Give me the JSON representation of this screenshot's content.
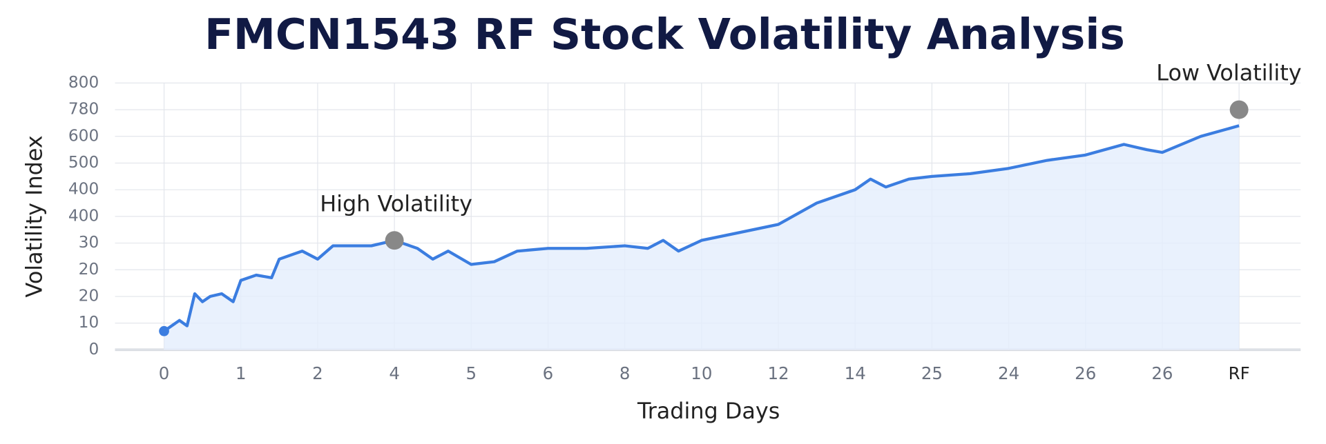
{
  "chart_data": {
    "type": "line",
    "title": "FMCN1543 RF Stock Volatility Analysis",
    "xlabel": "Trading Days",
    "ylabel": "Volatility Index",
    "categories": [
      "0",
      "1",
      "2",
      "4",
      "5",
      "6",
      "8",
      "10",
      "12",
      "14",
      "25",
      "24",
      "26",
      "26",
      "RF"
    ],
    "ylim": [
      0,
      10
    ],
    "yticks": [
      {
        "value": 0,
        "label": "0"
      },
      {
        "value": 1,
        "label": "10"
      },
      {
        "value": 2,
        "label": "20"
      },
      {
        "value": 3,
        "label": "20"
      },
      {
        "value": 4,
        "label": "30"
      },
      {
        "value": 5,
        "label": "400"
      },
      {
        "value": 6,
        "label": "400"
      },
      {
        "value": 7,
        "label": "500"
      },
      {
        "value": 8,
        "label": "600"
      },
      {
        "value": 9,
        "label": "780"
      },
      {
        "value": 10,
        "label": "800"
      }
    ],
    "grid": true,
    "series": [
      {
        "color": "#3b7de0",
        "x": [
          0,
          0.2,
          0.3,
          0.4,
          0.5,
          0.6,
          0.75,
          0.9,
          1.0,
          1.2,
          1.4,
          1.5,
          1.7,
          1.8,
          2.0,
          2.2,
          2.5,
          2.7,
          3.0,
          3.3,
          3.5,
          3.7,
          4.0,
          4.3,
          4.6,
          5.0,
          5.5,
          6.0,
          6.3,
          6.5,
          6.7,
          7.0,
          7.5,
          8.0,
          8.5,
          9.0,
          9.2,
          9.4,
          9.7,
          10.0,
          10.5,
          11.0,
          11.5,
          12.0,
          12.5,
          12.8,
          13.0,
          13.5,
          14.0
        ],
        "values": [
          0.7,
          1.1,
          0.9,
          2.1,
          1.8,
          2.0,
          2.1,
          1.8,
          2.6,
          2.8,
          2.7,
          3.4,
          3.6,
          3.7,
          3.4,
          3.9,
          3.9,
          3.9,
          4.1,
          3.8,
          3.4,
          3.7,
          3.2,
          3.3,
          3.7,
          3.8,
          3.8,
          3.9,
          3.8,
          4.1,
          3.7,
          4.1,
          4.4,
          4.7,
          5.5,
          6.0,
          6.4,
          6.1,
          6.4,
          6.5,
          6.6,
          6.8,
          7.1,
          7.3,
          7.7,
          7.5,
          7.4,
          8.0,
          8.4
        ]
      }
    ],
    "annotations": [
      {
        "text": "High Volatility",
        "x": 3.0,
        "y": 4.1
      },
      {
        "text": "Low Volatility",
        "x": 14.0,
        "y": 9.0
      }
    ]
  }
}
